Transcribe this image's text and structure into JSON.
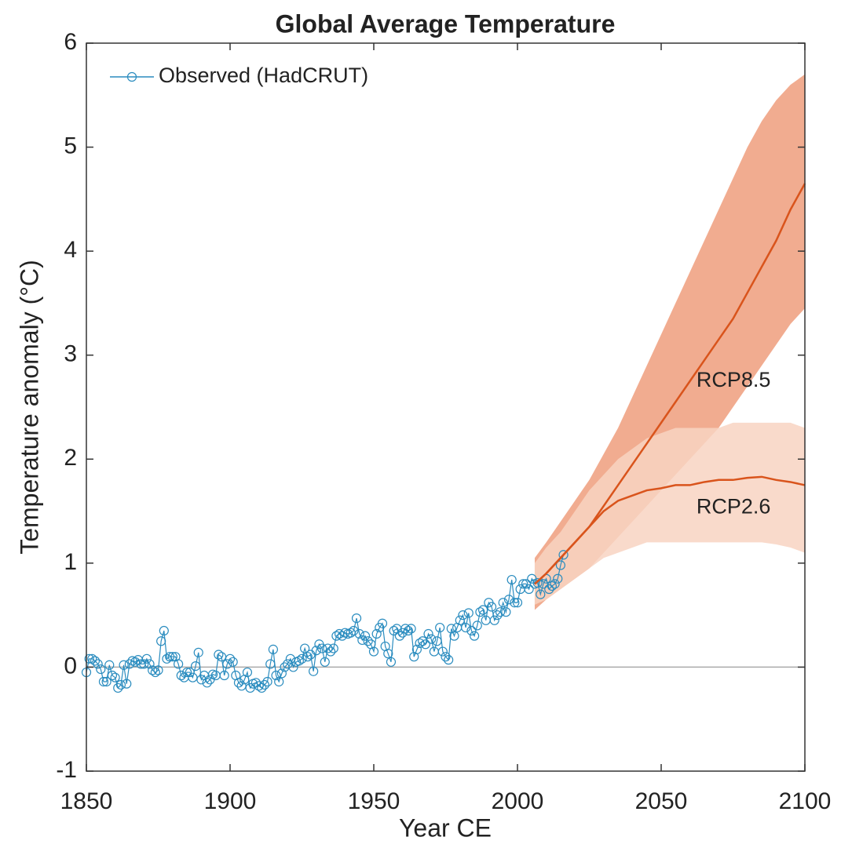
{
  "chart_data": {
    "type": "line",
    "title": "Global Average Temperature",
    "xlabel": "Year CE",
    "ylabel": "Temperature anomaly (°C)",
    "xlim": [
      1850,
      2100
    ],
    "xticks": [
      1850,
      1900,
      1950,
      2000,
      2050,
      2100
    ],
    "ylim": [
      -1,
      6
    ],
    "yticks": [
      -1,
      0,
      1,
      2,
      3,
      4,
      5,
      6
    ],
    "zero_line": true,
    "legend": "upper left",
    "series": [
      {
        "name": "Observed (HadCRUT)",
        "color": "#2a8cbf",
        "marker": "circle",
        "x": [
          1850,
          1851,
          1852,
          1853,
          1854,
          1855,
          1856,
          1857,
          1858,
          1859,
          1860,
          1861,
          1862,
          1863,
          1864,
          1865,
          1866,
          1867,
          1868,
          1869,
          1870,
          1871,
          1872,
          1873,
          1874,
          1875,
          1876,
          1877,
          1878,
          1879,
          1880,
          1881,
          1882,
          1883,
          1884,
          1885,
          1886,
          1887,
          1888,
          1889,
          1890,
          1891,
          1892,
          1893,
          1894,
          1895,
          1896,
          1897,
          1898,
          1899,
          1900,
          1901,
          1902,
          1903,
          1904,
          1905,
          1906,
          1907,
          1908,
          1909,
          1910,
          1911,
          1912,
          1913,
          1914,
          1915,
          1916,
          1917,
          1918,
          1919,
          1920,
          1921,
          1922,
          1923,
          1924,
          1925,
          1926,
          1927,
          1928,
          1929,
          1930,
          1931,
          1932,
          1933,
          1934,
          1935,
          1936,
          1937,
          1938,
          1939,
          1940,
          1941,
          1942,
          1943,
          1944,
          1945,
          1946,
          1947,
          1948,
          1949,
          1950,
          1951,
          1952,
          1953,
          1954,
          1955,
          1956,
          1957,
          1958,
          1959,
          1960,
          1961,
          1962,
          1963,
          1964,
          1965,
          1966,
          1967,
          1968,
          1969,
          1970,
          1971,
          1972,
          1973,
          1974,
          1975,
          1976,
          1977,
          1978,
          1979,
          1980,
          1981,
          1982,
          1983,
          1984,
          1985,
          1986,
          1987,
          1988,
          1989,
          1990,
          1991,
          1992,
          1993,
          1994,
          1995,
          1996,
          1997,
          1998,
          1999,
          2000,
          2001,
          2002,
          2003,
          2004,
          2005,
          2006,
          2007,
          2008,
          2009,
          2010,
          2011,
          2012,
          2013,
          2014,
          2015,
          2016
        ],
        "values": [
          -0.05,
          0.08,
          0.08,
          0.06,
          0.03,
          -0.02,
          -0.14,
          -0.14,
          0.02,
          -0.08,
          -0.1,
          -0.2,
          -0.17,
          0.02,
          -0.16,
          0.03,
          0.06,
          0.05,
          0.07,
          0.03,
          0.03,
          0.08,
          0.03,
          -0.03,
          -0.05,
          -0.03,
          0.25,
          0.35,
          0.08,
          0.1,
          0.1,
          0.1,
          0.03,
          -0.08,
          -0.1,
          -0.05,
          -0.05,
          -0.1,
          0.01,
          0.14,
          -0.12,
          -0.08,
          -0.15,
          -0.12,
          -0.07,
          -0.08,
          0.12,
          0.1,
          -0.08,
          0.03,
          0.08,
          0.05,
          -0.08,
          -0.15,
          -0.18,
          -0.12,
          -0.05,
          -0.2,
          -0.16,
          -0.15,
          -0.18,
          -0.2,
          -0.17,
          -0.14,
          0.03,
          0.17,
          -0.08,
          -0.14,
          -0.06,
          0.0,
          0.03,
          0.08,
          0.0,
          0.05,
          0.06,
          0.08,
          0.18,
          0.1,
          0.12,
          -0.04,
          0.16,
          0.22,
          0.18,
          0.05,
          0.18,
          0.15,
          0.18,
          0.3,
          0.32,
          0.3,
          0.33,
          0.32,
          0.33,
          0.35,
          0.47,
          0.32,
          0.26,
          0.3,
          0.25,
          0.22,
          0.15,
          0.32,
          0.38,
          0.42,
          0.2,
          0.13,
          0.05,
          0.35,
          0.37,
          0.3,
          0.33,
          0.37,
          0.35,
          0.37,
          0.1,
          0.17,
          0.23,
          0.25,
          0.22,
          0.32,
          0.27,
          0.15,
          0.25,
          0.38,
          0.15,
          0.1,
          0.07,
          0.37,
          0.3,
          0.38,
          0.45,
          0.5,
          0.38,
          0.52,
          0.35,
          0.3,
          0.4,
          0.53,
          0.55,
          0.45,
          0.62,
          0.58,
          0.45,
          0.5,
          0.53,
          0.62,
          0.53,
          0.65,
          0.84,
          0.62,
          0.62,
          0.75,
          0.8,
          0.8,
          0.75,
          0.85,
          0.8,
          0.81,
          0.7,
          0.8,
          0.85,
          0.75,
          0.78,
          0.8,
          0.85,
          0.98,
          1.08
        ]
      },
      {
        "name": "RCP8.5",
        "color": "#d9541c",
        "band_color": "#ee9e7c",
        "x": [
          2006,
          2010,
          2015,
          2020,
          2025,
          2030,
          2035,
          2040,
          2045,
          2050,
          2055,
          2060,
          2065,
          2070,
          2075,
          2080,
          2085,
          2090,
          2095,
          2100
        ],
        "values": [
          0.8,
          0.9,
          1.05,
          1.2,
          1.35,
          1.55,
          1.75,
          1.95,
          2.15,
          2.35,
          2.55,
          2.75,
          2.95,
          3.15,
          3.35,
          3.6,
          3.85,
          4.1,
          4.4,
          4.65
        ],
        "lower": [
          0.55,
          0.65,
          0.75,
          0.85,
          0.95,
          1.1,
          1.25,
          1.4,
          1.55,
          1.7,
          1.85,
          2.0,
          2.15,
          2.3,
          2.5,
          2.7,
          2.9,
          3.1,
          3.3,
          3.45
        ],
        "upper": [
          1.05,
          1.2,
          1.4,
          1.6,
          1.8,
          2.05,
          2.3,
          2.6,
          2.9,
          3.2,
          3.5,
          3.8,
          4.1,
          4.4,
          4.7,
          5.0,
          5.25,
          5.45,
          5.6,
          5.7
        ]
      },
      {
        "name": "RCP2.6",
        "color": "#d9541c",
        "band_color": "#f8d3c2",
        "x": [
          2006,
          2010,
          2015,
          2020,
          2025,
          2030,
          2035,
          2040,
          2045,
          2050,
          2055,
          2060,
          2065,
          2070,
          2075,
          2080,
          2085,
          2090,
          2095,
          2100
        ],
        "values": [
          0.8,
          0.9,
          1.05,
          1.2,
          1.35,
          1.5,
          1.6,
          1.65,
          1.7,
          1.72,
          1.75,
          1.75,
          1.78,
          1.8,
          1.8,
          1.82,
          1.83,
          1.8,
          1.78,
          1.75
        ],
        "lower": [
          0.6,
          0.65,
          0.75,
          0.85,
          0.95,
          1.05,
          1.1,
          1.15,
          1.2,
          1.2,
          1.2,
          1.2,
          1.2,
          1.2,
          1.2,
          1.2,
          1.2,
          1.18,
          1.15,
          1.1
        ],
        "upper": [
          1.0,
          1.15,
          1.3,
          1.5,
          1.7,
          1.85,
          2.0,
          2.1,
          2.2,
          2.25,
          2.3,
          2.3,
          2.3,
          2.3,
          2.35,
          2.35,
          2.35,
          2.35,
          2.35,
          2.3
        ]
      }
    ]
  }
}
